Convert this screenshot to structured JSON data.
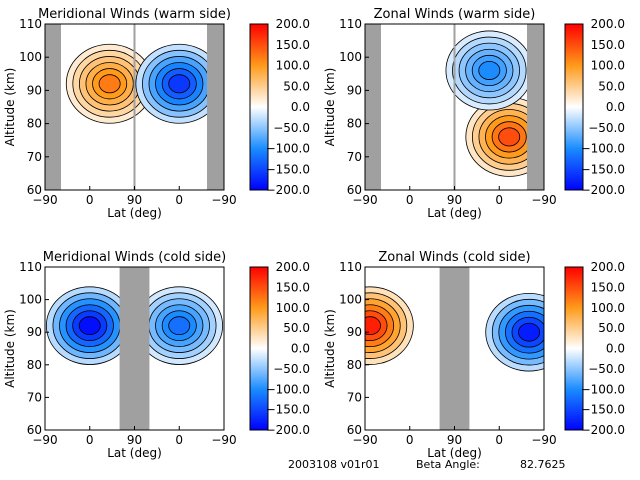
{
  "chart_data": [
    {
      "type": "heatmap",
      "title": "Meridional Winds (warm side)",
      "xlabel": "Lat (deg)",
      "ylabel": "Altitude (km)",
      "xticks": [
        "-90",
        "0",
        "90",
        "0",
        "-90"
      ],
      "yticks": [
        "60",
        "70",
        "80",
        "90",
        "100",
        "110"
      ],
      "ylim": [
        60,
        110
      ],
      "colorbar": {
        "ticks": [
          "200.0",
          "150.0",
          "100.0",
          "50.0",
          "0.0",
          "-50.0",
          "-100.0",
          "-150.0",
          "-200.0"
        ],
        "range": [
          -200,
          200
        ]
      },
      "gray_regions": [
        [
          -90,
          -60
        ],
        [
          90,
          90
        ],
        [
          -60,
          -90
        ]
      ],
      "blobs": [
        {
          "lat_half": "left",
          "center": [
            40,
            92
          ],
          "value": 120
        },
        {
          "lat_half": "right",
          "center": [
            0,
            92
          ],
          "value": -160
        }
      ]
    },
    {
      "type": "heatmap",
      "title": "Zonal Winds (warm side)",
      "xlabel": "Lat (deg)",
      "ylabel": "Altitude (km)",
      "xticks": [
        "-90",
        "0",
        "90",
        "0",
        "-90"
      ],
      "yticks": [
        "60",
        "70",
        "80",
        "90",
        "100",
        "110"
      ],
      "ylim": [
        60,
        110
      ],
      "colorbar": {
        "ticks": [
          "200.0",
          "150.0",
          "100.0",
          "50.0",
          "0.0",
          "-50.0",
          "-100.0",
          "-150.0",
          "-200.0"
        ],
        "range": [
          -200,
          200
        ]
      },
      "gray_regions": [
        [
          -90,
          -60
        ],
        [
          90,
          90
        ],
        [
          -60,
          -90
        ]
      ],
      "blobs": [
        {
          "lat_half": "right",
          "center": [
            -20,
            76
          ],
          "value": 150
        },
        {
          "lat_half": "right",
          "center": [
            20,
            96
          ],
          "value": -100
        }
      ]
    },
    {
      "type": "heatmap",
      "title": "Meridional Winds (cold side)",
      "xlabel": "Lat (deg)",
      "ylabel": "Altitude (km)",
      "xticks": [
        "-90",
        "0",
        "90",
        "0",
        "-90"
      ],
      "yticks": [
        "60",
        "70",
        "80",
        "90",
        "100",
        "110"
      ],
      "ylim": [
        60,
        110
      ],
      "colorbar": {
        "ticks": [
          "200.0",
          "150.0",
          "100.0",
          "50.0",
          "0.0",
          "-50.0",
          "-100.0",
          "-150.0",
          "-200.0"
        ],
        "range": [
          -200,
          200
        ]
      },
      "gray_regions": [
        [
          60,
          120
        ]
      ],
      "blobs": [
        {
          "lat_half": "left",
          "center": [
            0,
            92
          ],
          "value": -190
        },
        {
          "lat_half": "right",
          "center": [
            0,
            92
          ],
          "value": -120
        }
      ]
    },
    {
      "type": "heatmap",
      "title": "Zonal Winds (cold side)",
      "xlabel": "Lat (deg)",
      "ylabel": "Altitude (km)",
      "xticks": [
        "-90",
        "0",
        "90",
        "0",
        "-90"
      ],
      "yticks": [
        "60",
        "70",
        "80",
        "90",
        "100",
        "110"
      ],
      "ylim": [
        60,
        110
      ],
      "colorbar": {
        "ticks": [
          "200.0",
          "150.0",
          "100.0",
          "50.0",
          "0.0",
          "-50.0",
          "-100.0",
          "-150.0",
          "-200.0"
        ],
        "range": [
          -200,
          200
        ]
      },
      "gray_regions": [
        [
          60,
          120
        ]
      ],
      "blobs": [
        {
          "lat_half": "left",
          "center": [
            -80,
            92
          ],
          "value": 180
        },
        {
          "lat_half": "right",
          "center": [
            -60,
            90
          ],
          "value": -180
        }
      ]
    }
  ],
  "footer": {
    "id": "2003108 v01r01",
    "beta_label": "Beta Angle:",
    "beta_value": "82.7625"
  }
}
